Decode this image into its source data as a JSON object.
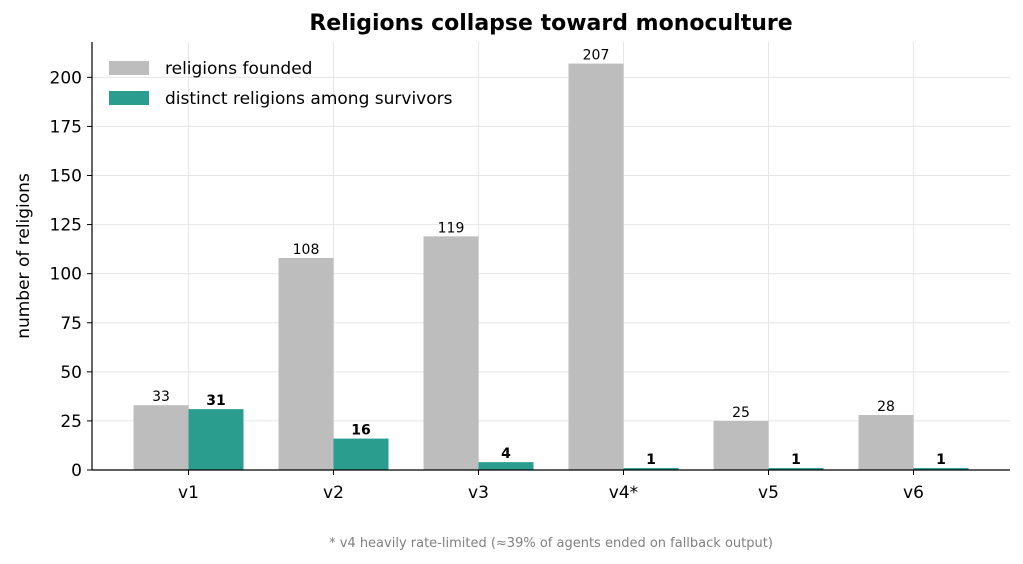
{
  "chart_data": {
    "type": "bar",
    "title": "Religions collapse toward monoculture",
    "xlabel": "",
    "ylabel": "number of religions",
    "categories": [
      "v1",
      "v2",
      "v3",
      "v4*",
      "v5",
      "v6"
    ],
    "series": [
      {
        "name": "religions founded",
        "values": [
          33,
          108,
          119,
          207,
          25,
          28
        ],
        "color": "#bdbdbd"
      },
      {
        "name": "distinct religions among survivors",
        "values": [
          31,
          16,
          4,
          1,
          1,
          1
        ],
        "color": "#2a9d8f"
      }
    ],
    "ylim": [
      0,
      218
    ],
    "yticks": [
      0,
      25,
      50,
      75,
      100,
      125,
      150,
      175,
      200
    ],
    "grid": true,
    "legend": "top-left",
    "footnote": "* v4 heavily rate-limited (≈39% of agents ended on fallback output)"
  }
}
